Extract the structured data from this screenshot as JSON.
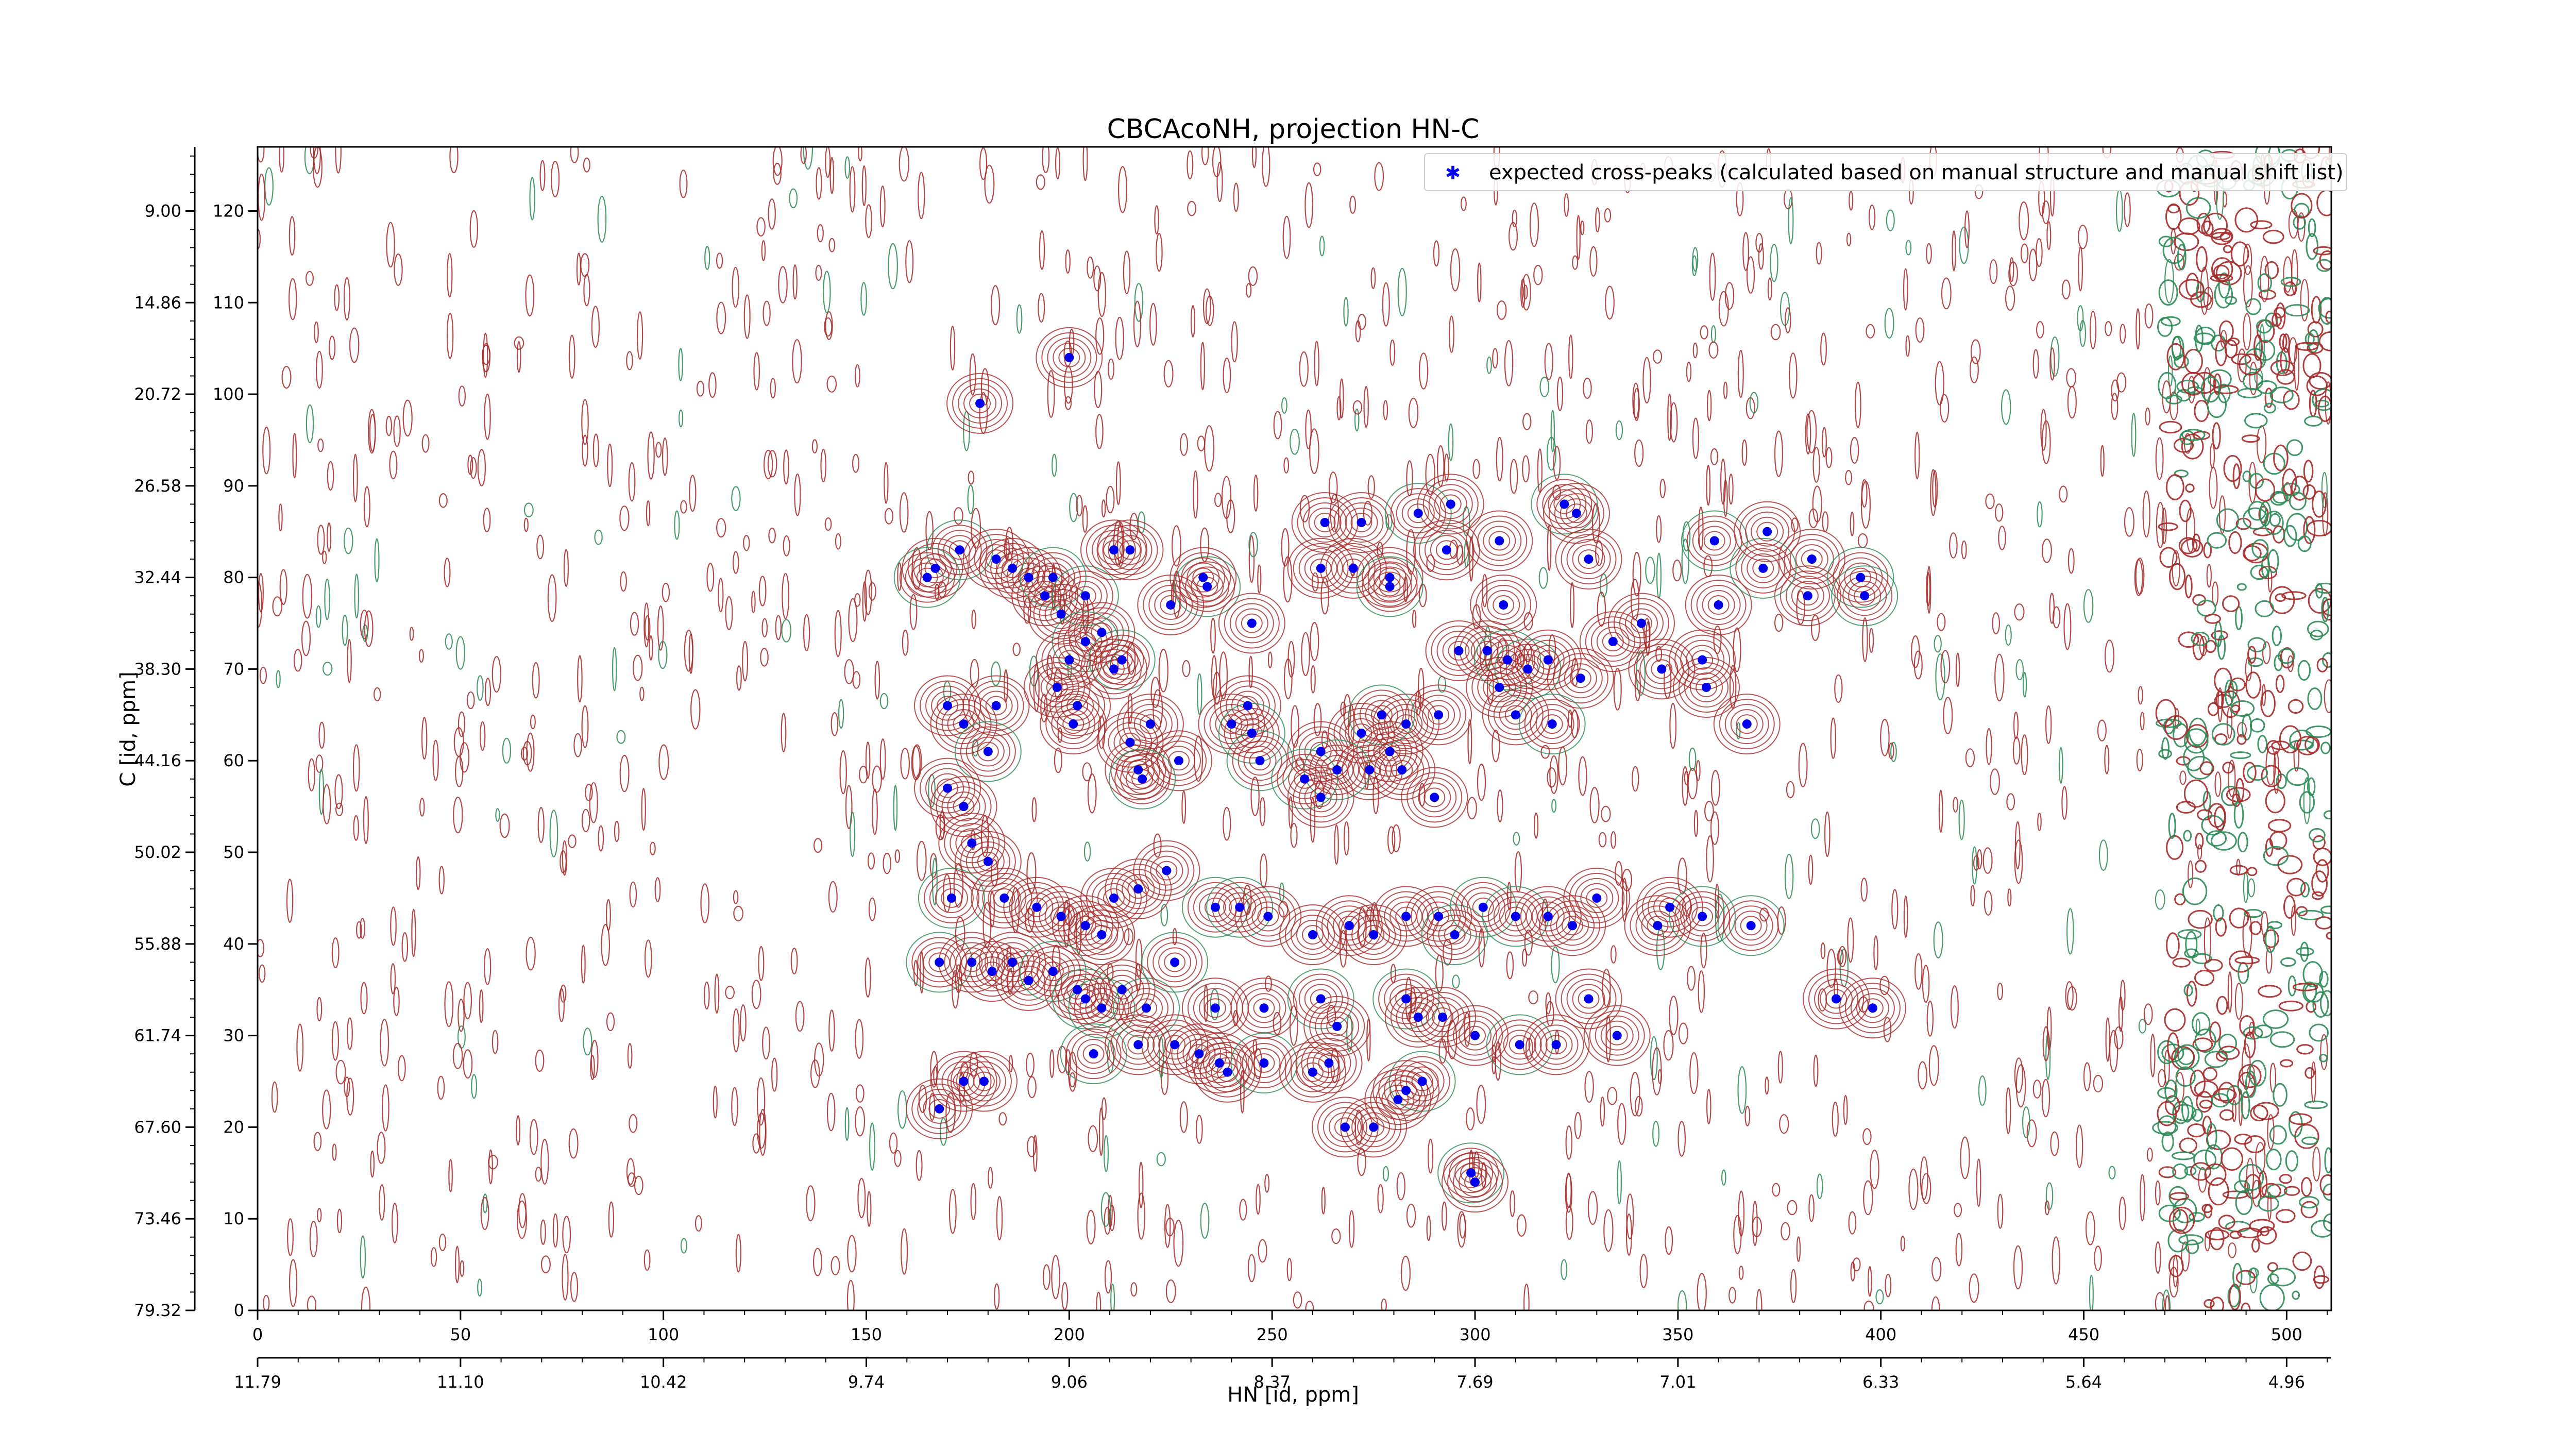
{
  "chart_data": {
    "type": "scatter",
    "title": "CBCAcoNH, projection HN-C",
    "xlabel": "HN [id, ppm]",
    "ylabel": "C [id, ppm]",
    "xlim": [
      0,
      511
    ],
    "ylim": [
      0,
      127
    ],
    "x_ticks": [
      0,
      50,
      100,
      150,
      200,
      250,
      300,
      350,
      400,
      450,
      500
    ],
    "y_ticks": [
      0,
      10,
      20,
      30,
      40,
      50,
      60,
      70,
      80,
      90,
      100,
      110,
      120
    ],
    "x_ppm_ticks": [
      {
        "label": "11.79",
        "pos": 0
      },
      {
        "label": "11.10",
        "pos": 50
      },
      {
        "label": "10.42",
        "pos": 100
      },
      {
        "label": "9.74",
        "pos": 150
      },
      {
        "label": "9.06",
        "pos": 200
      },
      {
        "label": "8.37",
        "pos": 250
      },
      {
        "label": "7.69",
        "pos": 300
      },
      {
        "label": "7.01",
        "pos": 350
      },
      {
        "label": "6.33",
        "pos": 400
      },
      {
        "label": "5.64",
        "pos": 450
      },
      {
        "label": "4.96",
        "pos": 500
      }
    ],
    "y_ppm_ticks": [
      {
        "label": "79.32",
        "pos": 0
      },
      {
        "label": "73.46",
        "pos": 10
      },
      {
        "label": "67.60",
        "pos": 20
      },
      {
        "label": "61.74",
        "pos": 30
      },
      {
        "label": "55.88",
        "pos": 40
      },
      {
        "label": "50.02",
        "pos": 50
      },
      {
        "label": "44.16",
        "pos": 60
      },
      {
        "label": "38.30",
        "pos": 70
      },
      {
        "label": "32.44",
        "pos": 80
      },
      {
        "label": "26.58",
        "pos": 90
      },
      {
        "label": "20.72",
        "pos": 100
      },
      {
        "label": "14.86",
        "pos": 110
      },
      {
        "label": "9.00",
        "pos": 120
      }
    ],
    "legend": {
      "placement": "top-right",
      "label": "expected cross-peaks (calculated based on manual structure and manual shift list)",
      "marker_color": "#0000ee"
    },
    "contour_colors": {
      "positive": "#a52a2a",
      "negative": "#2e8b57"
    },
    "series": [
      {
        "name": "expected cross-peaks (calculated based on manual structure and manual shift list)",
        "color": "#0000ee",
        "points": [
          [
            200,
            104
          ],
          [
            178,
            99
          ],
          [
            167,
            81
          ],
          [
            173,
            83
          ],
          [
            182,
            82
          ],
          [
            186,
            81
          ],
          [
            190,
            80
          ],
          [
            196,
            80
          ],
          [
            194,
            78
          ],
          [
            198,
            76
          ],
          [
            204,
            78
          ],
          [
            208,
            74
          ],
          [
            211,
            83
          ],
          [
            215,
            83
          ],
          [
            225,
            77
          ],
          [
            234,
            79
          ],
          [
            233,
            80
          ],
          [
            245,
            75
          ],
          [
            263,
            86
          ],
          [
            272,
            86
          ],
          [
            262,
            81
          ],
          [
            270,
            81
          ],
          [
            279,
            80
          ],
          [
            279,
            79
          ],
          [
            286,
            87
          ],
          [
            294,
            88
          ],
          [
            293,
            83
          ],
          [
            306,
            84
          ],
          [
            307,
            77
          ],
          [
            322,
            88
          ],
          [
            325,
            87
          ],
          [
            328,
            82
          ],
          [
            359,
            84
          ],
          [
            360,
            77
          ],
          [
            383,
            82
          ],
          [
            382,
            78
          ],
          [
            395,
            80
          ],
          [
            396,
            78
          ],
          [
            204,
            73
          ],
          [
            200,
            71
          ],
          [
            197,
            68
          ],
          [
            202,
            66
          ],
          [
            213,
            71
          ],
          [
            211,
            70
          ],
          [
            182,
            66
          ],
          [
            170,
            66
          ],
          [
            165,
            80
          ],
          [
            174,
            64
          ],
          [
            180,
            61
          ],
          [
            201,
            64
          ],
          [
            215,
            62
          ],
          [
            220,
            64
          ],
          [
            227,
            60
          ],
          [
            217,
            59
          ],
          [
            218,
            58
          ],
          [
            240,
            64
          ],
          [
            244,
            66
          ],
          [
            245,
            63
          ],
          [
            247,
            60
          ],
          [
            272,
            63
          ],
          [
            283,
            64
          ],
          [
            291,
            65
          ],
          [
            296,
            72
          ],
          [
            277,
            65
          ],
          [
            279,
            61
          ],
          [
            274,
            59
          ],
          [
            262,
            61
          ],
          [
            266,
            59
          ],
          [
            258,
            58
          ],
          [
            262,
            56
          ],
          [
            282,
            59
          ],
          [
            290,
            56
          ],
          [
            303,
            72
          ],
          [
            308,
            71
          ],
          [
            313,
            70
          ],
          [
            318,
            71
          ],
          [
            306,
            68
          ],
          [
            310,
            65
          ],
          [
            326,
            69
          ],
          [
            319,
            64
          ],
          [
            334,
            73
          ],
          [
            341,
            75
          ],
          [
            346,
            70
          ],
          [
            356,
            71
          ],
          [
            357,
            68
          ],
          [
            367,
            64
          ],
          [
            371,
            81
          ],
          [
            372,
            85
          ],
          [
            170,
            57
          ],
          [
            176,
            51
          ],
          [
            174,
            55
          ],
          [
            180,
            49
          ],
          [
            171,
            45
          ],
          [
            184,
            45
          ],
          [
            192,
            44
          ],
          [
            198,
            43
          ],
          [
            204,
            42
          ],
          [
            208,
            41
          ],
          [
            211,
            45
          ],
          [
            217,
            46
          ],
          [
            224,
            48
          ],
          [
            236,
            44
          ],
          [
            242,
            44
          ],
          [
            249,
            43
          ],
          [
            260,
            41
          ],
          [
            269,
            42
          ],
          [
            275,
            41
          ],
          [
            283,
            43
          ],
          [
            291,
            43
          ],
          [
            295,
            41
          ],
          [
            302,
            44
          ],
          [
            310,
            43
          ],
          [
            318,
            43
          ],
          [
            324,
            42
          ],
          [
            330,
            45
          ],
          [
            345,
            42
          ],
          [
            348,
            44
          ],
          [
            356,
            43
          ],
          [
            368,
            42
          ],
          [
            168,
            38
          ],
          [
            176,
            38
          ],
          [
            181,
            37
          ],
          [
            186,
            38
          ],
          [
            190,
            36
          ],
          [
            196,
            37
          ],
          [
            202,
            35
          ],
          [
            204,
            34
          ],
          [
            208,
            33
          ],
          [
            213,
            35
          ],
          [
            219,
            33
          ],
          [
            226,
            38
          ],
          [
            236,
            33
          ],
          [
            248,
            33
          ],
          [
            262,
            34
          ],
          [
            266,
            31
          ],
          [
            283,
            34
          ],
          [
            286,
            32
          ],
          [
            292,
            32
          ],
          [
            300,
            30
          ],
          [
            311,
            29
          ],
          [
            320,
            29
          ],
          [
            328,
            34
          ],
          [
            335,
            30
          ],
          [
            398,
            33
          ],
          [
            389,
            34
          ],
          [
            174,
            25
          ],
          [
            179,
            25
          ],
          [
            168,
            22
          ],
          [
            206,
            28
          ],
          [
            217,
            29
          ],
          [
            226,
            29
          ],
          [
            232,
            28
          ],
          [
            237,
            27
          ],
          [
            239,
            26
          ],
          [
            248,
            27
          ],
          [
            260,
            26
          ],
          [
            264,
            27
          ],
          [
            283,
            24
          ],
          [
            287,
            25
          ],
          [
            281,
            23
          ],
          [
            268,
            20
          ],
          [
            275,
            20
          ],
          [
            299,
            15
          ],
          [
            300,
            14
          ]
        ]
      }
    ]
  }
}
